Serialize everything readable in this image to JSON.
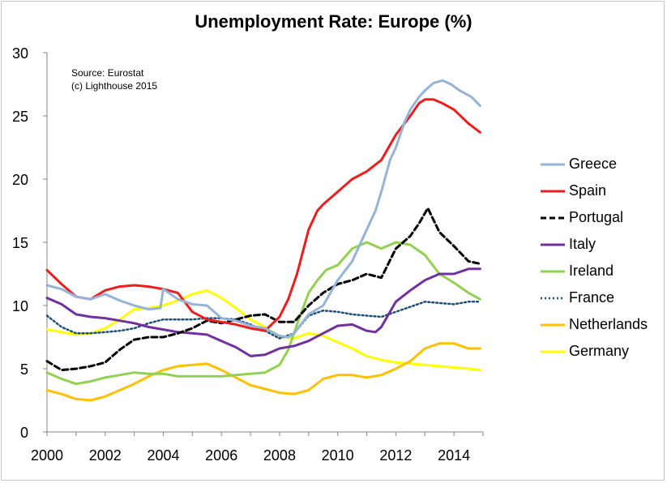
{
  "chart_data": {
    "type": "line",
    "title": "Unemployment Rate: Europe (%)",
    "notes": [
      "Source: Eurostat",
      "(c) Lighthouse 2015"
    ],
    "xlabel": "",
    "ylabel": "",
    "xlim": [
      2000,
      2015
    ],
    "ylim": [
      0,
      30
    ],
    "x_ticks": [
      2000,
      2002,
      2004,
      2006,
      2008,
      2010,
      2012,
      2014
    ],
    "y_ticks": [
      0,
      5,
      10,
      15,
      20,
      25,
      30
    ],
    "grid": false,
    "legend_position": "right",
    "series": [
      {
        "name": "Greece",
        "color": "#95b3d7",
        "dash": "solid",
        "x": [
          2000,
          2000.5,
          2001,
          2001.5,
          2002,
          2002.5,
          2003,
          2003.5,
          2003.9,
          2004.0,
          2004.5,
          2005,
          2005.5,
          2006,
          2006.5,
          2007,
          2007.5,
          2008,
          2008.3,
          2008.5,
          2009,
          2009.5,
          2010,
          2010.5,
          2011,
          2011.3,
          2011.5,
          2011.8,
          2012,
          2012.3,
          2012.5,
          2012.8,
          2013,
          2013.3,
          2013.6,
          2013.9,
          2014.2,
          2014.6,
          2014.9
        ],
        "y": [
          11.6,
          11.3,
          10.7,
          10.5,
          10.9,
          10.4,
          10.0,
          9.7,
          9.8,
          11.3,
          10.5,
          10.1,
          10.0,
          9.0,
          8.8,
          8.4,
          8.2,
          7.6,
          7.5,
          7.8,
          9.3,
          10.0,
          12.0,
          13.5,
          16.0,
          17.5,
          19.0,
          21.5,
          22.5,
          24.5,
          25.5,
          26.5,
          27.0,
          27.6,
          27.8,
          27.5,
          27.0,
          26.5,
          25.8
        ]
      },
      {
        "name": "Spain",
        "color": "#ee1c1c",
        "dash": "solid",
        "x": [
          2000,
          2000.5,
          2001,
          2001.5,
          2002,
          2002.5,
          2003,
          2003.5,
          2004,
          2004.5,
          2005,
          2005.5,
          2006,
          2006.5,
          2007,
          2007.5,
          2008,
          2008.3,
          2008.6,
          2009,
          2009.3,
          2009.5,
          2010,
          2010.5,
          2011,
          2011.5,
          2012,
          2012.5,
          2012.8,
          2013,
          2013.3,
          2013.6,
          2014,
          2014.5,
          2014.9
        ],
        "y": [
          12.8,
          11.7,
          10.7,
          10.5,
          11.2,
          11.5,
          11.6,
          11.5,
          11.3,
          11.0,
          9.5,
          8.9,
          8.7,
          8.5,
          8.2,
          8.0,
          9.1,
          10.5,
          12.5,
          16.0,
          17.5,
          18.0,
          19.0,
          20.0,
          20.6,
          21.5,
          23.5,
          25.0,
          26.0,
          26.3,
          26.3,
          26.0,
          25.5,
          24.4,
          23.7
        ]
      },
      {
        "name": "Portugal",
        "color": "#000000",
        "dash": "dashed",
        "x": [
          2000,
          2000.5,
          2001,
          2001.5,
          2002,
          2002.5,
          2003,
          2003.5,
          2004,
          2004.5,
          2005,
          2005.5,
          2006,
          2006.5,
          2007,
          2007.5,
          2008,
          2008.5,
          2009,
          2009.5,
          2010,
          2010.5,
          2011,
          2011.5,
          2012,
          2012.5,
          2012.8,
          2013.1,
          2013.5,
          2014,
          2014.5,
          2014.9
        ],
        "y": [
          5.6,
          4.9,
          5.0,
          5.2,
          5.5,
          6.5,
          7.3,
          7.5,
          7.5,
          7.8,
          8.2,
          8.8,
          8.6,
          8.9,
          9.2,
          9.3,
          8.7,
          8.7,
          10.0,
          11.0,
          11.7,
          12.0,
          12.5,
          12.2,
          14.5,
          15.5,
          16.5,
          17.7,
          15.8,
          14.7,
          13.5,
          13.3
        ]
      },
      {
        "name": "Italy",
        "color": "#7030a0",
        "dash": "solid",
        "x": [
          2000,
          2000.5,
          2001,
          2001.5,
          2002,
          2002.5,
          2003,
          2003.5,
          2004,
          2004.5,
          2005,
          2005.5,
          2006,
          2006.5,
          2007,
          2007.5,
          2008,
          2008.5,
          2009,
          2009.5,
          2010,
          2010.5,
          2011,
          2011.3,
          2011.5,
          2012,
          2012.5,
          2013,
          2013.5,
          2014,
          2014.5,
          2014.9
        ],
        "y": [
          10.6,
          10.1,
          9.3,
          9.1,
          9.0,
          8.8,
          8.6,
          8.3,
          8.1,
          7.9,
          7.8,
          7.7,
          7.2,
          6.7,
          6.0,
          6.1,
          6.6,
          6.8,
          7.2,
          7.8,
          8.4,
          8.5,
          8.0,
          7.9,
          8.3,
          10.3,
          11.2,
          12.0,
          12.5,
          12.5,
          12.9,
          12.9
        ]
      },
      {
        "name": "Ireland",
        "color": "#92d050",
        "dash": "solid",
        "x": [
          2000,
          2000.5,
          2001,
          2001.5,
          2002,
          2002.5,
          2003,
          2003.5,
          2004,
          2004.5,
          2005,
          2005.5,
          2006,
          2006.5,
          2007,
          2007.5,
          2008,
          2008.3,
          2008.6,
          2009,
          2009.3,
          2009.6,
          2010,
          2010.5,
          2011,
          2011.5,
          2012,
          2012.5,
          2013,
          2013.5,
          2014,
          2014.5,
          2014.9
        ],
        "y": [
          4.7,
          4.2,
          3.8,
          4.0,
          4.3,
          4.5,
          4.7,
          4.6,
          4.6,
          4.4,
          4.4,
          4.4,
          4.4,
          4.5,
          4.6,
          4.7,
          5.3,
          6.5,
          8.5,
          11.0,
          12.0,
          12.8,
          13.2,
          14.5,
          15.0,
          14.5,
          15.0,
          14.8,
          14.0,
          12.5,
          11.8,
          11.0,
          10.5
        ]
      },
      {
        "name": "France",
        "color": "#1f4e79",
        "dash": "dotted",
        "x": [
          2000,
          2000.5,
          2001,
          2001.5,
          2002,
          2002.5,
          2003,
          2003.5,
          2004,
          2004.5,
          2005,
          2005.5,
          2006,
          2006.5,
          2007,
          2007.5,
          2008,
          2008.5,
          2009,
          2009.5,
          2010,
          2010.5,
          2011,
          2011.5,
          2012,
          2012.5,
          2013,
          2013.5,
          2014,
          2014.5,
          2014.9
        ],
        "y": [
          9.2,
          8.3,
          7.8,
          7.8,
          7.9,
          8.0,
          8.2,
          8.6,
          8.9,
          8.9,
          8.9,
          9.0,
          9.0,
          8.9,
          8.5,
          8.0,
          7.4,
          7.8,
          9.2,
          9.6,
          9.5,
          9.3,
          9.2,
          9.1,
          9.5,
          9.9,
          10.3,
          10.2,
          10.1,
          10.3,
          10.3
        ]
      },
      {
        "name": "Netherlands",
        "color": "#ffc000",
        "dash": "solid",
        "x": [
          2000,
          2000.5,
          2001,
          2001.5,
          2002,
          2002.5,
          2003,
          2003.5,
          2004,
          2004.5,
          2005,
          2005.5,
          2006,
          2006.5,
          2007,
          2007.5,
          2008,
          2008.5,
          2009,
          2009.5,
          2010,
          2010.5,
          2011,
          2011.5,
          2012,
          2012.5,
          2013,
          2013.5,
          2014,
          2014.5,
          2014.9
        ],
        "y": [
          3.3,
          3.0,
          2.6,
          2.5,
          2.8,
          3.3,
          3.8,
          4.4,
          4.9,
          5.2,
          5.3,
          5.4,
          4.9,
          4.3,
          3.7,
          3.4,
          3.1,
          3.0,
          3.3,
          4.2,
          4.5,
          4.5,
          4.3,
          4.5,
          5.0,
          5.6,
          6.6,
          7.0,
          7.0,
          6.6,
          6.6
        ]
      },
      {
        "name": "Germany",
        "color": "#ffff00",
        "dash": "solid",
        "x": [
          2000,
          2000.5,
          2001,
          2001.5,
          2002,
          2002.5,
          2003,
          2003.5,
          2004,
          2004.5,
          2005,
          2005.5,
          2006,
          2006.5,
          2007,
          2007.5,
          2008,
          2008.5,
          2009,
          2009.5,
          2010,
          2010.5,
          2011,
          2011.5,
          2012,
          2012.5,
          2013,
          2013.5,
          2014,
          2014.5,
          2014.9
        ],
        "y": [
          8.1,
          7.9,
          7.7,
          7.8,
          8.2,
          8.9,
          9.7,
          9.8,
          10.0,
          10.4,
          10.9,
          11.2,
          10.6,
          9.8,
          8.9,
          8.3,
          7.5,
          7.4,
          7.8,
          7.6,
          7.1,
          6.6,
          6.0,
          5.7,
          5.5,
          5.4,
          5.3,
          5.2,
          5.1,
          5.0,
          4.9
        ]
      }
    ]
  }
}
